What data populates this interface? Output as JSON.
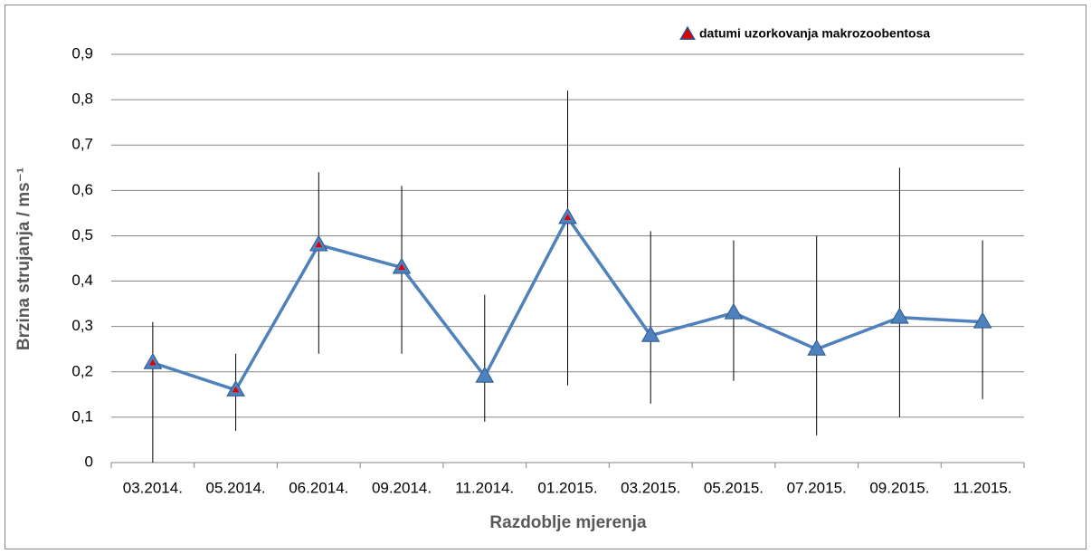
{
  "chart_data": {
    "type": "line",
    "xlabel": "Razdoblje mjerenja",
    "ylabel": "Brzina strujanja / ms⁻¹",
    "categories": [
      "03.2014.",
      "05.2014.",
      "06.2014.",
      "09.2014.",
      "11.2014.",
      "01.2015.",
      "03.2015.",
      "05.2015.",
      "07.2015.",
      "09.2015.",
      "11.2015."
    ],
    "series": [
      {
        "color": "#4f81bd",
        "values": [
          0.22,
          0.16,
          0.48,
          0.43,
          0.19,
          0.54,
          0.28,
          0.33,
          0.25,
          0.32,
          0.31
        ],
        "errors_upper": [
          0.09,
          0.08,
          0.16,
          0.18,
          0.18,
          0.28,
          0.23,
          0.16,
          0.25,
          0.33,
          0.18
        ],
        "errors_lower": [
          0.22,
          0.09,
          0.24,
          0.19,
          0.1,
          0.37,
          0.15,
          0.15,
          0.19,
          0.22,
          0.17
        ]
      },
      {
        "name": "datumi uzorkovanja makrozoobentosa",
        "color": "#e00000",
        "values": [
          0.22,
          0.16,
          0.48,
          0.43,
          null,
          0.54,
          null,
          null,
          null,
          null,
          null
        ]
      }
    ],
    "ylim": [
      0,
      0.9
    ],
    "yticks": [
      0,
      {
        "value": 0.1,
        "label": "0,1"
      },
      {
        "value": 0.2,
        "label": "0,2"
      },
      {
        "value": 0.3,
        "label": "0,3"
      },
      {
        "value": 0.4,
        "label": "0,4"
      },
      {
        "value": 0.5,
        "label": "0,5"
      },
      {
        "value": 0.6,
        "label": "0,6"
      },
      {
        "value": 0.7,
        "label": "0,7"
      },
      {
        "value": 0.8,
        "label": "0,8"
      },
      {
        "value": 0.9,
        "label": "0,9"
      }
    ],
    "grid": true,
    "legend": "top-right"
  }
}
